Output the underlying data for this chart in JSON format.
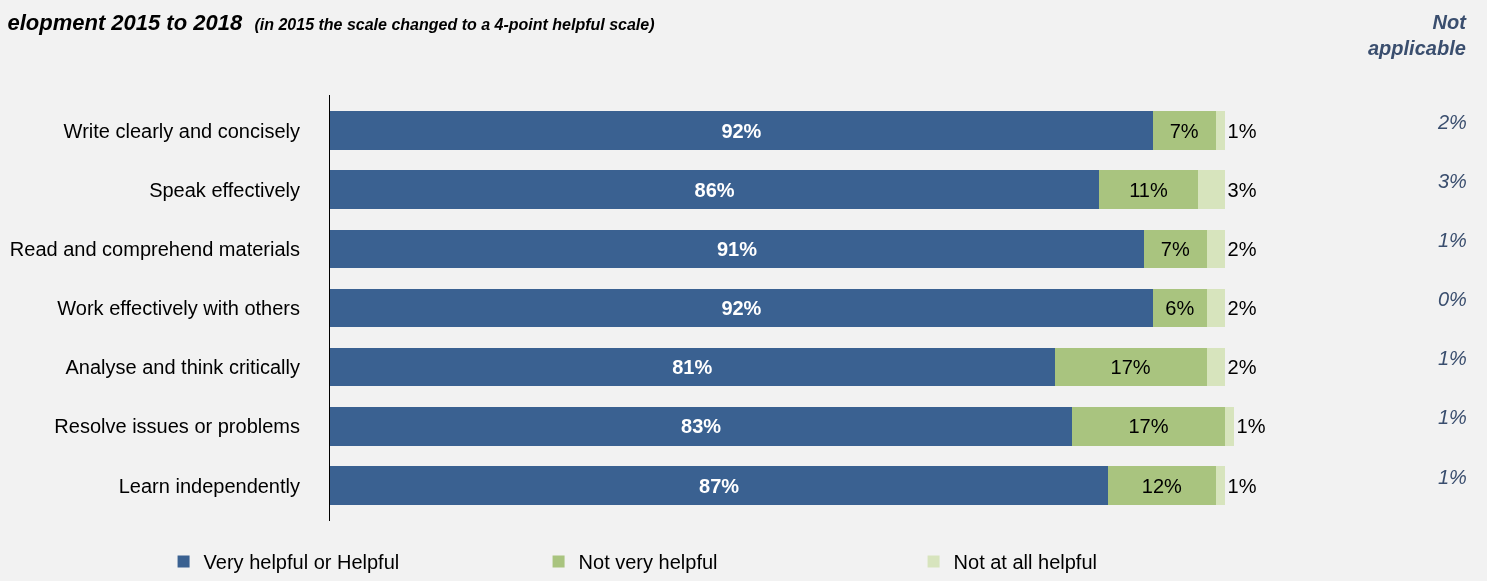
{
  "chart_data": {
    "type": "bar",
    "orientation": "horizontal",
    "stacked": true,
    "title": "elopment 2015 to 2018",
    "subtitle": "(in 2015 the scale changed to a 4-point helpful scale)",
    "categories": [
      "Write clearly and concisely",
      "Speak effectively",
      "Read and comprehend materials",
      "Work effectively with others",
      "Analyse and think critically",
      "Resolve issues or problems",
      "Learn independently"
    ],
    "series": [
      {
        "name": "Very helpful or Helpful",
        "color": "#3a6191",
        "values": [
          92,
          86,
          91,
          92,
          81,
          83,
          87
        ],
        "value_labels": [
          "92%",
          "86%",
          "91%",
          "92%",
          "81%",
          "83%",
          "87%"
        ]
      },
      {
        "name": "Not very helpful",
        "color": "#a9c47f",
        "values": [
          7,
          11,
          7,
          6,
          17,
          17,
          12
        ],
        "value_labels": [
          "7%",
          "11%",
          "7%",
          "6%",
          "17%",
          "17%",
          "12%"
        ]
      },
      {
        "name": "Not at all helpful",
        "color": "#d7e4bd",
        "values": [
          1,
          3,
          2,
          2,
          2,
          1,
          1
        ],
        "value_labels": [
          "1%",
          "3%",
          "2%",
          "2%",
          "2%",
          "1%",
          "1%"
        ]
      }
    ],
    "legend": "bottom",
    "grid": false,
    "annotations": [
      "Not applicable",
      "2%",
      "3%",
      "1%",
      "0%",
      "1%",
      "1%",
      "1%"
    ]
  }
}
